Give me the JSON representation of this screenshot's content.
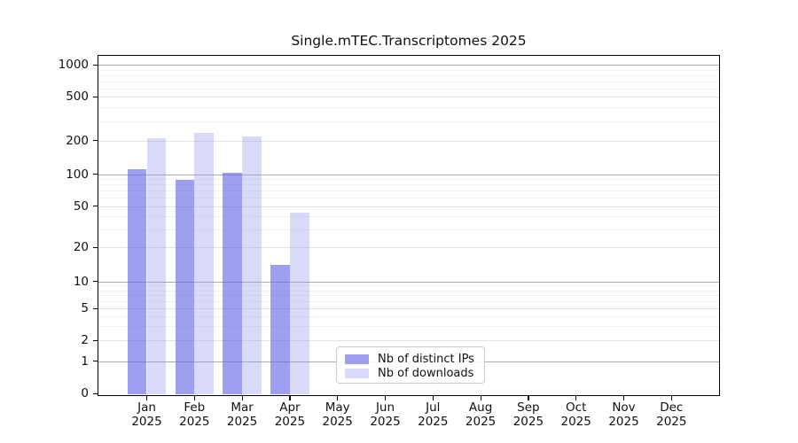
{
  "chart_data": {
    "type": "bar",
    "title": "Single.mTEC.Transcriptomes 2025",
    "categories": [
      "Jan 2025",
      "Feb 2025",
      "Mar 2025",
      "Apr 2025",
      "May 2025",
      "Jun 2025",
      "Jul 2025",
      "Aug 2025",
      "Sep 2025",
      "Oct 2025",
      "Nov 2025",
      "Dec 2025"
    ],
    "series": [
      {
        "name": "Nb of distinct IPs",
        "color_hex": "#9f9fef",
        "fill": "rgba(100,100,230,0.62)",
        "values": [
          110,
          89,
          103,
          14,
          0,
          0,
          0,
          0,
          0,
          0,
          0,
          0
        ]
      },
      {
        "name": "Nb of downloads",
        "color_hex": "#d9d9f8",
        "fill": "rgba(150,150,235,0.36)",
        "values": [
          210,
          233,
          217,
          43,
          0,
          0,
          0,
          0,
          0,
          0,
          0,
          0
        ]
      }
    ],
    "xlabel": "",
    "ylabel": "",
    "y_axis": {
      "scale": "symlog",
      "ticks": [
        0,
        1,
        2,
        5,
        10,
        20,
        50,
        100,
        200,
        500,
        1000
      ],
      "minor_gridlines": [
        3,
        4,
        6,
        7,
        8,
        9,
        30,
        40,
        60,
        70,
        80,
        90,
        300,
        400,
        600,
        700,
        800,
        900
      ]
    },
    "grid": true,
    "legend_position": "bottom-center-inside",
    "grid_colors": {
      "power10": "#ababab",
      "labeled": "#e3e3e3",
      "minor": "#f1f1f1"
    }
  }
}
